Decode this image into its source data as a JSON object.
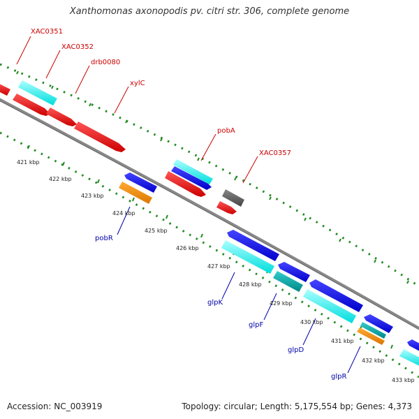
{
  "title": "Xanthomonas axonopodis pv. citri str. 306, complete genome",
  "footer": {
    "accession": "Accession: NC_003919",
    "genome_info": "Topology: circular; Length: 5,175,554 bp; Genes: 4,373"
  },
  "colors": {
    "forward_gene": "#ee0000",
    "forward_gene_alt": "#00e5ee",
    "reverse_gene": "#0000ee",
    "reverse_gene_alt": "#00bbbb",
    "other_gene": "#ff8c00",
    "pseudo_gene": "#555555",
    "backbone": "#888888",
    "dots": "#228b22",
    "label_forward": "#cc0000",
    "label_reverse": "#0000aa"
  },
  "ticks": [
    {
      "label": "421 kbp"
    },
    {
      "label": "422 kbp"
    },
    {
      "label": "423 kbp"
    },
    {
      "label": "424 kbp"
    },
    {
      "label": "425 kbp"
    },
    {
      "label": "426 kbp"
    },
    {
      "label": "427 kbp"
    },
    {
      "label": "428 kbp"
    },
    {
      "label": "429 kbp"
    },
    {
      "label": "430 kbp"
    },
    {
      "label": "431 kbp"
    },
    {
      "label": "432 kbp"
    },
    {
      "label": "433 kbp"
    }
  ],
  "gene_labels_forward": [
    {
      "name": "XAC0351"
    },
    {
      "name": "XAC0352"
    },
    {
      "name": "drb0080"
    },
    {
      "name": "xylC"
    },
    {
      "name": "pobA"
    },
    {
      "name": "XAC0357"
    }
  ],
  "gene_labels_reverse": [
    {
      "name": "pobR"
    },
    {
      "name": "glpK"
    },
    {
      "name": "glpF"
    },
    {
      "name": "glpD"
    },
    {
      "name": "glpR"
    }
  ]
}
